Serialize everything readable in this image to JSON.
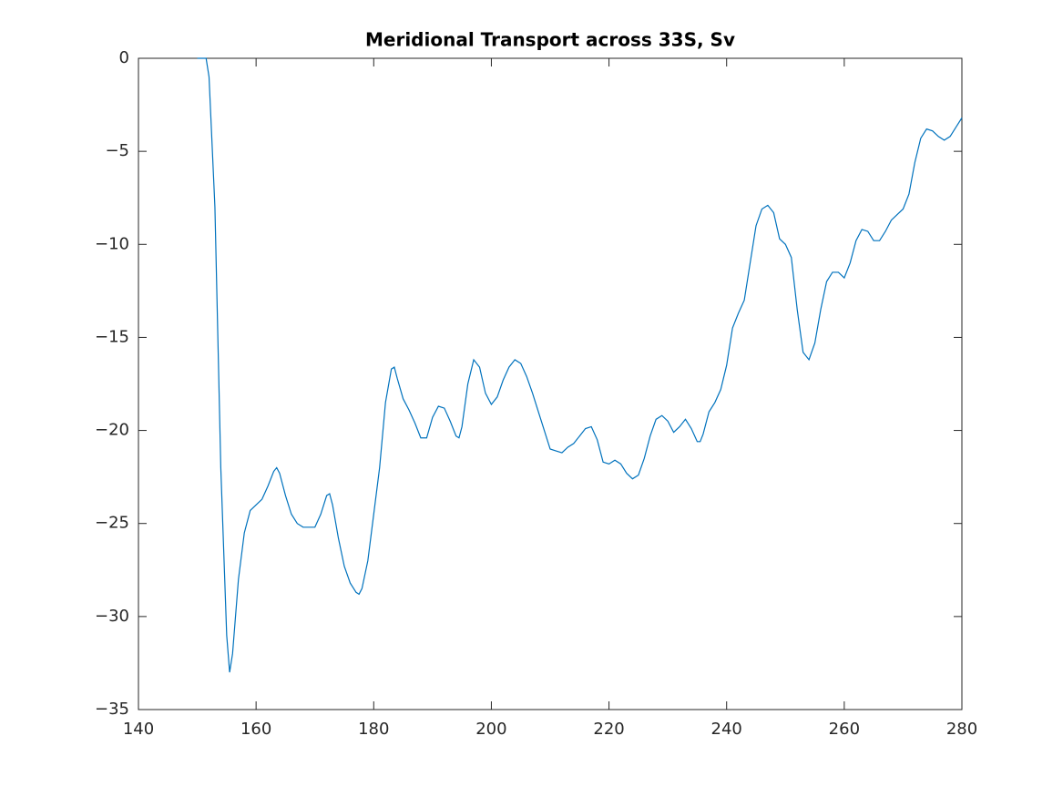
{
  "chart_data": {
    "type": "line",
    "title": "Meridional Transport across 33S, Sv",
    "x": [
      150,
      151.5,
      152,
      153,
      154,
      155,
      155.5,
      156,
      157,
      158,
      159,
      160,
      161,
      162,
      163,
      163.5,
      164,
      165,
      166,
      167,
      168,
      170,
      171,
      172,
      172.5,
      173,
      174,
      175,
      176,
      177,
      177.5,
      178,
      179,
      180,
      181,
      182,
      183,
      183.5,
      184,
      185,
      186,
      187,
      188,
      189,
      190,
      191,
      192,
      193,
      194,
      194.5,
      195,
      196,
      197,
      198,
      199,
      200,
      201,
      202,
      203,
      204,
      205,
      206,
      207,
      208,
      209,
      210,
      211,
      212,
      213,
      214,
      215,
      216,
      217,
      218,
      219,
      220,
      221,
      222,
      223,
      224,
      225,
      226,
      227,
      228,
      229,
      230,
      231,
      232,
      233,
      234,
      235,
      235.5,
      236,
      237,
      238,
      239,
      240,
      241,
      242,
      243,
      244,
      245,
      246,
      247,
      248,
      249,
      250,
      251,
      252,
      253,
      254,
      255,
      256,
      257,
      258,
      259,
      260,
      261,
      262,
      263,
      264,
      265,
      266,
      267,
      268,
      269,
      270,
      271,
      272,
      273,
      274,
      275,
      276,
      277,
      278,
      279,
      280
    ],
    "series": [
      {
        "color": "#0072bd",
        "values": [
          0,
          0,
          -1,
          -8,
          -22,
          -31,
          -33,
          -32,
          -28,
          -25.5,
          -24.3,
          -24,
          -23.7,
          -23,
          -22.2,
          -22,
          -22.3,
          -23.5,
          -24.5,
          -25,
          -25.2,
          -25.2,
          -24.5,
          -23.5,
          -23.4,
          -24,
          -25.8,
          -27.3,
          -28.2,
          -28.7,
          -28.8,
          -28.5,
          -27,
          -24.5,
          -22,
          -18.5,
          -16.7,
          -16.6,
          -17.2,
          -18.3,
          -18.9,
          -19.6,
          -20.4,
          -20.4,
          -19.3,
          -18.7,
          -18.8,
          -19.5,
          -20.3,
          -20.4,
          -19.8,
          -17.5,
          -16.2,
          -16.6,
          -18,
          -18.6,
          -18.2,
          -17.3,
          -16.6,
          -16.2,
          -16.4,
          -17.1,
          -18,
          -19,
          -20,
          -21,
          -21.1,
          -21.2,
          -20.9,
          -20.7,
          -20.3,
          -19.9,
          -19.8,
          -20.5,
          -21.7,
          -21.8,
          -21.6,
          -21.8,
          -22.3,
          -22.6,
          -22.4,
          -21.5,
          -20.3,
          -19.4,
          -19.2,
          -19.5,
          -20.1,
          -19.8,
          -19.4,
          -19.9,
          -20.6,
          -20.6,
          -20.2,
          -19,
          -18.5,
          -17.8,
          -16.5,
          -14.5,
          -13.7,
          -13,
          -11,
          -9,
          -8.1,
          -7.9,
          -8.3,
          -9.7,
          -10,
          -10.7,
          -13.5,
          -15.8,
          -16.2,
          -15.3,
          -13.5,
          -12,
          -11.5,
          -11.5,
          -11.8,
          -11,
          -9.8,
          -9.2,
          -9.3,
          -9.8,
          -9.8,
          -9.3,
          -8.7,
          -8.4,
          -8.1,
          -7.3,
          -5.6,
          -4.3,
          -3.8,
          -3.9,
          -4.2,
          -4.4,
          -4.2,
          -3.7,
          -3.2
        ]
      }
    ],
    "xlim": [
      140,
      280
    ],
    "xticks": [
      140,
      160,
      180,
      200,
      220,
      240,
      260,
      280
    ],
    "ylim": [
      -35,
      0
    ],
    "yticks": [
      {
        "value": -35,
        "label": "−35"
      },
      {
        "value": -30,
        "label": "−30"
      },
      {
        "value": -25,
        "label": "−25"
      },
      {
        "value": -20,
        "label": "−20"
      },
      {
        "value": -15,
        "label": "−15"
      },
      {
        "value": -10,
        "label": "−10"
      },
      {
        "value": -5,
        "label": "−5"
      },
      0
    ]
  }
}
